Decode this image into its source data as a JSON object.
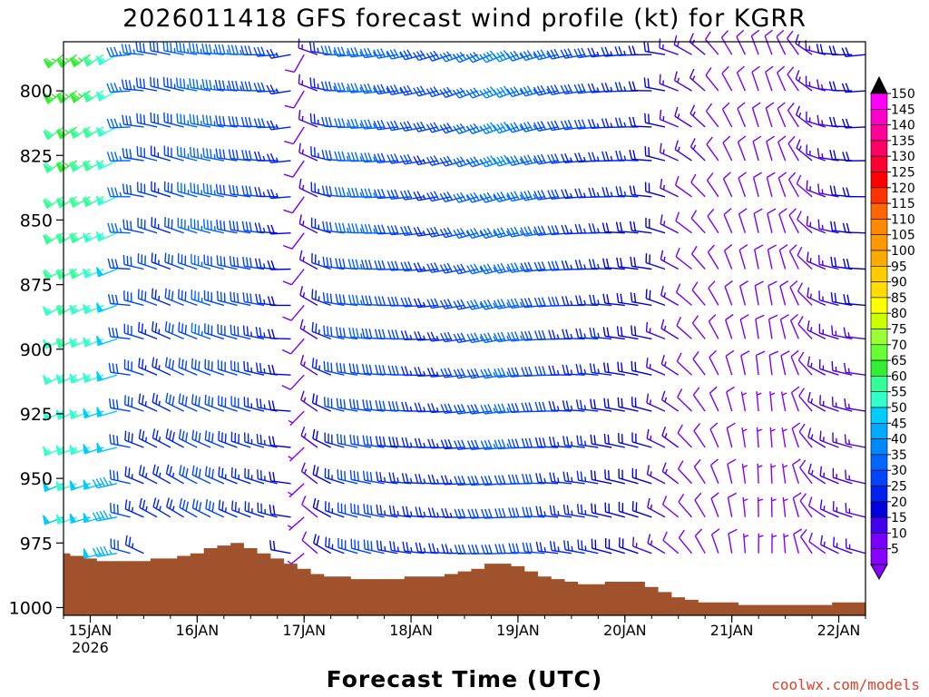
{
  "chart_data": {
    "type": "wind_barb_profile",
    "title": "2026011418 GFS forecast wind profile (kt) for KGRR",
    "xlabel": "Forecast Time (UTC)",
    "credit": "coolwx.com/models",
    "x_ticks": [
      {
        "label": "15JAN",
        "sublabel": "2026",
        "hours": 6
      },
      {
        "label": "16JAN",
        "sublabel": "",
        "hours": 30
      },
      {
        "label": "17JAN",
        "sublabel": "",
        "hours": 54
      },
      {
        "label": "18JAN",
        "sublabel": "",
        "hours": 78
      },
      {
        "label": "19JAN",
        "sublabel": "",
        "hours": 102
      },
      {
        "label": "20JAN",
        "sublabel": "",
        "hours": 126
      },
      {
        "label": "21JAN",
        "sublabel": "",
        "hours": 150
      },
      {
        "label": "22JAN",
        "sublabel": "",
        "hours": 174
      }
    ],
    "x_range_hours": [
      0,
      180
    ],
    "y_ticks": [
      800,
      825,
      850,
      875,
      900,
      925,
      950,
      975,
      1000
    ],
    "y_range_hpa": [
      781,
      1003
    ],
    "levels_hpa": [
      786,
      800,
      814,
      827,
      841,
      855,
      869,
      883,
      896,
      910,
      924,
      938,
      952,
      965,
      979
    ],
    "times_hours": [
      0,
      3,
      6,
      9,
      12,
      15,
      18,
      21,
      24,
      27,
      30,
      33,
      36,
      39,
      42,
      45,
      48,
      51,
      54,
      57,
      60,
      63,
      66,
      69,
      72,
      75,
      78,
      81,
      84,
      87,
      90,
      93,
      96,
      99,
      102,
      105,
      108,
      111,
      114,
      117,
      120,
      123,
      126,
      129,
      132,
      135,
      138,
      141,
      144,
      147,
      150,
      153,
      156,
      159,
      162,
      165,
      168,
      171,
      174,
      177,
      180
    ],
    "wind_speed_kt_by_time": [
      58,
      60,
      58,
      56,
      52,
      32,
      30,
      28,
      26,
      30,
      32,
      34,
      32,
      30,
      30,
      28,
      26,
      22,
      8,
      14,
      24,
      30,
      32,
      34,
      32,
      30,
      30,
      28,
      26,
      28,
      30,
      32,
      34,
      36,
      36,
      34,
      32,
      30,
      28,
      26,
      26,
      24,
      22,
      22,
      20,
      18,
      14,
      12,
      12,
      10,
      10,
      8,
      8,
      8,
      8,
      10,
      12,
      14,
      16,
      18,
      18
    ],
    "wind_dir_deg_by_time": [
      240,
      242,
      244,
      246,
      250,
      275,
      285,
      290,
      292,
      292,
      290,
      288,
      286,
      284,
      282,
      280,
      276,
      270,
      220,
      300,
      290,
      280,
      276,
      274,
      272,
      270,
      268,
      266,
      264,
      262,
      260,
      258,
      258,
      258,
      260,
      262,
      264,
      266,
      268,
      270,
      272,
      274,
      276,
      278,
      280,
      290,
      300,
      310,
      320,
      330,
      340,
      345,
      350,
      350,
      345,
      335,
      315,
      295,
      285,
      280,
      275
    ],
    "surface_pressure_hpa_by_time": [
      979,
      980,
      981,
      982,
      982,
      982,
      982,
      981,
      981,
      980,
      979,
      977,
      976,
      975,
      977,
      979,
      981,
      983,
      985,
      987,
      988,
      988,
      989,
      989,
      989,
      989,
      988,
      988,
      988,
      987,
      986,
      985,
      983,
      983,
      984,
      986,
      988,
      989,
      990,
      991,
      991,
      990,
      990,
      990,
      992,
      994,
      996,
      997,
      998,
      998,
      998,
      999,
      999,
      999,
      999,
      999,
      999,
      999,
      998,
      998,
      998
    ],
    "colorbar_labels": [
      "150",
      "145",
      "140",
      "135",
      "130",
      "125",
      "120",
      "115",
      "110",
      "105",
      "100",
      "95",
      "90",
      "85",
      "80",
      "75",
      "70",
      "65",
      "60",
      "55",
      "50",
      "45",
      "40",
      "35",
      "30",
      "25",
      "20",
      "15",
      "10",
      "5"
    ],
    "colorbar_colors": [
      "#ff00ff",
      "#ff00cc",
      "#ff0099",
      "#ff0066",
      "#ff0033",
      "#ff0000",
      "#ff3300",
      "#ff6600",
      "#ff8800",
      "#ff9900",
      "#ffaa00",
      "#ffcc00",
      "#ffdd00",
      "#ffff00",
      "#ccff00",
      "#99ff33",
      "#66ff33",
      "#33ee33",
      "#33ff99",
      "#33ffcc",
      "#00ccff",
      "#00aaff",
      "#0088ff",
      "#0066ff",
      "#0044ff",
      "#0022ee",
      "#0000dd",
      "#4400ee",
      "#7700ff",
      "#8800ff"
    ],
    "terrain_color": "#a0522d"
  }
}
